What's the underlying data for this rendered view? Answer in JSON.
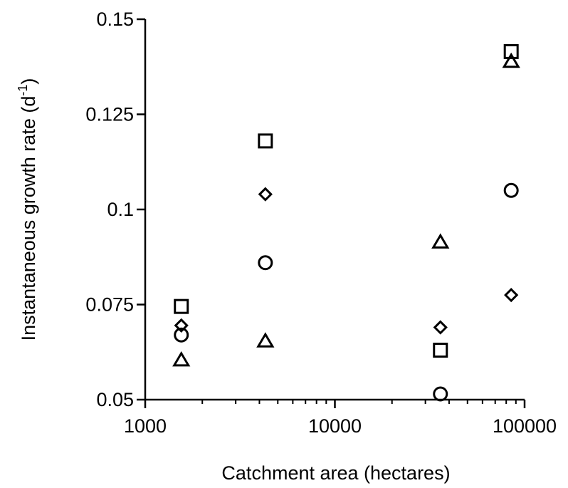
{
  "chart_data": {
    "type": "scatter",
    "title": "",
    "xlabel": "Catchment area (hectares)",
    "ylabel_main": "Instantaneous growth rate (d",
    "ylabel_sup": "-1",
    "ylabel_tail": ")",
    "xscale": "log",
    "xlim": [
      1000,
      100000
    ],
    "ylim": [
      0.05,
      0.15
    ],
    "x_ticks": [
      1000,
      10000,
      100000
    ],
    "x_tick_labels": [
      "1000",
      "10000",
      "100000"
    ],
    "y_ticks": [
      0.05,
      0.075,
      0.1,
      0.125,
      0.15
    ],
    "y_tick_labels": [
      "0.05",
      "0.075",
      "0.1",
      "0.125",
      "0.15"
    ],
    "grid": false,
    "legend": "none",
    "marker_color": "#000000",
    "series": [
      {
        "marker": "square",
        "points": [
          {
            "x": 1550,
            "y": 0.0745
          },
          {
            "x": 4300,
            "y": 0.118
          },
          {
            "x": 36000,
            "y": 0.063
          },
          {
            "x": 85000,
            "y": 0.1415
          }
        ]
      },
      {
        "marker": "triangle",
        "points": [
          {
            "x": 1550,
            "y": 0.0605
          },
          {
            "x": 4300,
            "y": 0.0655
          },
          {
            "x": 36000,
            "y": 0.0915
          },
          {
            "x": 85000,
            "y": 0.139
          }
        ]
      },
      {
        "marker": "diamond",
        "points": [
          {
            "x": 1550,
            "y": 0.0695
          },
          {
            "x": 4300,
            "y": 0.104
          },
          {
            "x": 36000,
            "y": 0.069
          },
          {
            "x": 85000,
            "y": 0.0775
          }
        ]
      },
      {
        "marker": "circle",
        "points": [
          {
            "x": 1550,
            "y": 0.067
          },
          {
            "x": 4300,
            "y": 0.086
          },
          {
            "x": 36000,
            "y": 0.0515
          },
          {
            "x": 85000,
            "y": 0.105
          }
        ]
      }
    ]
  }
}
